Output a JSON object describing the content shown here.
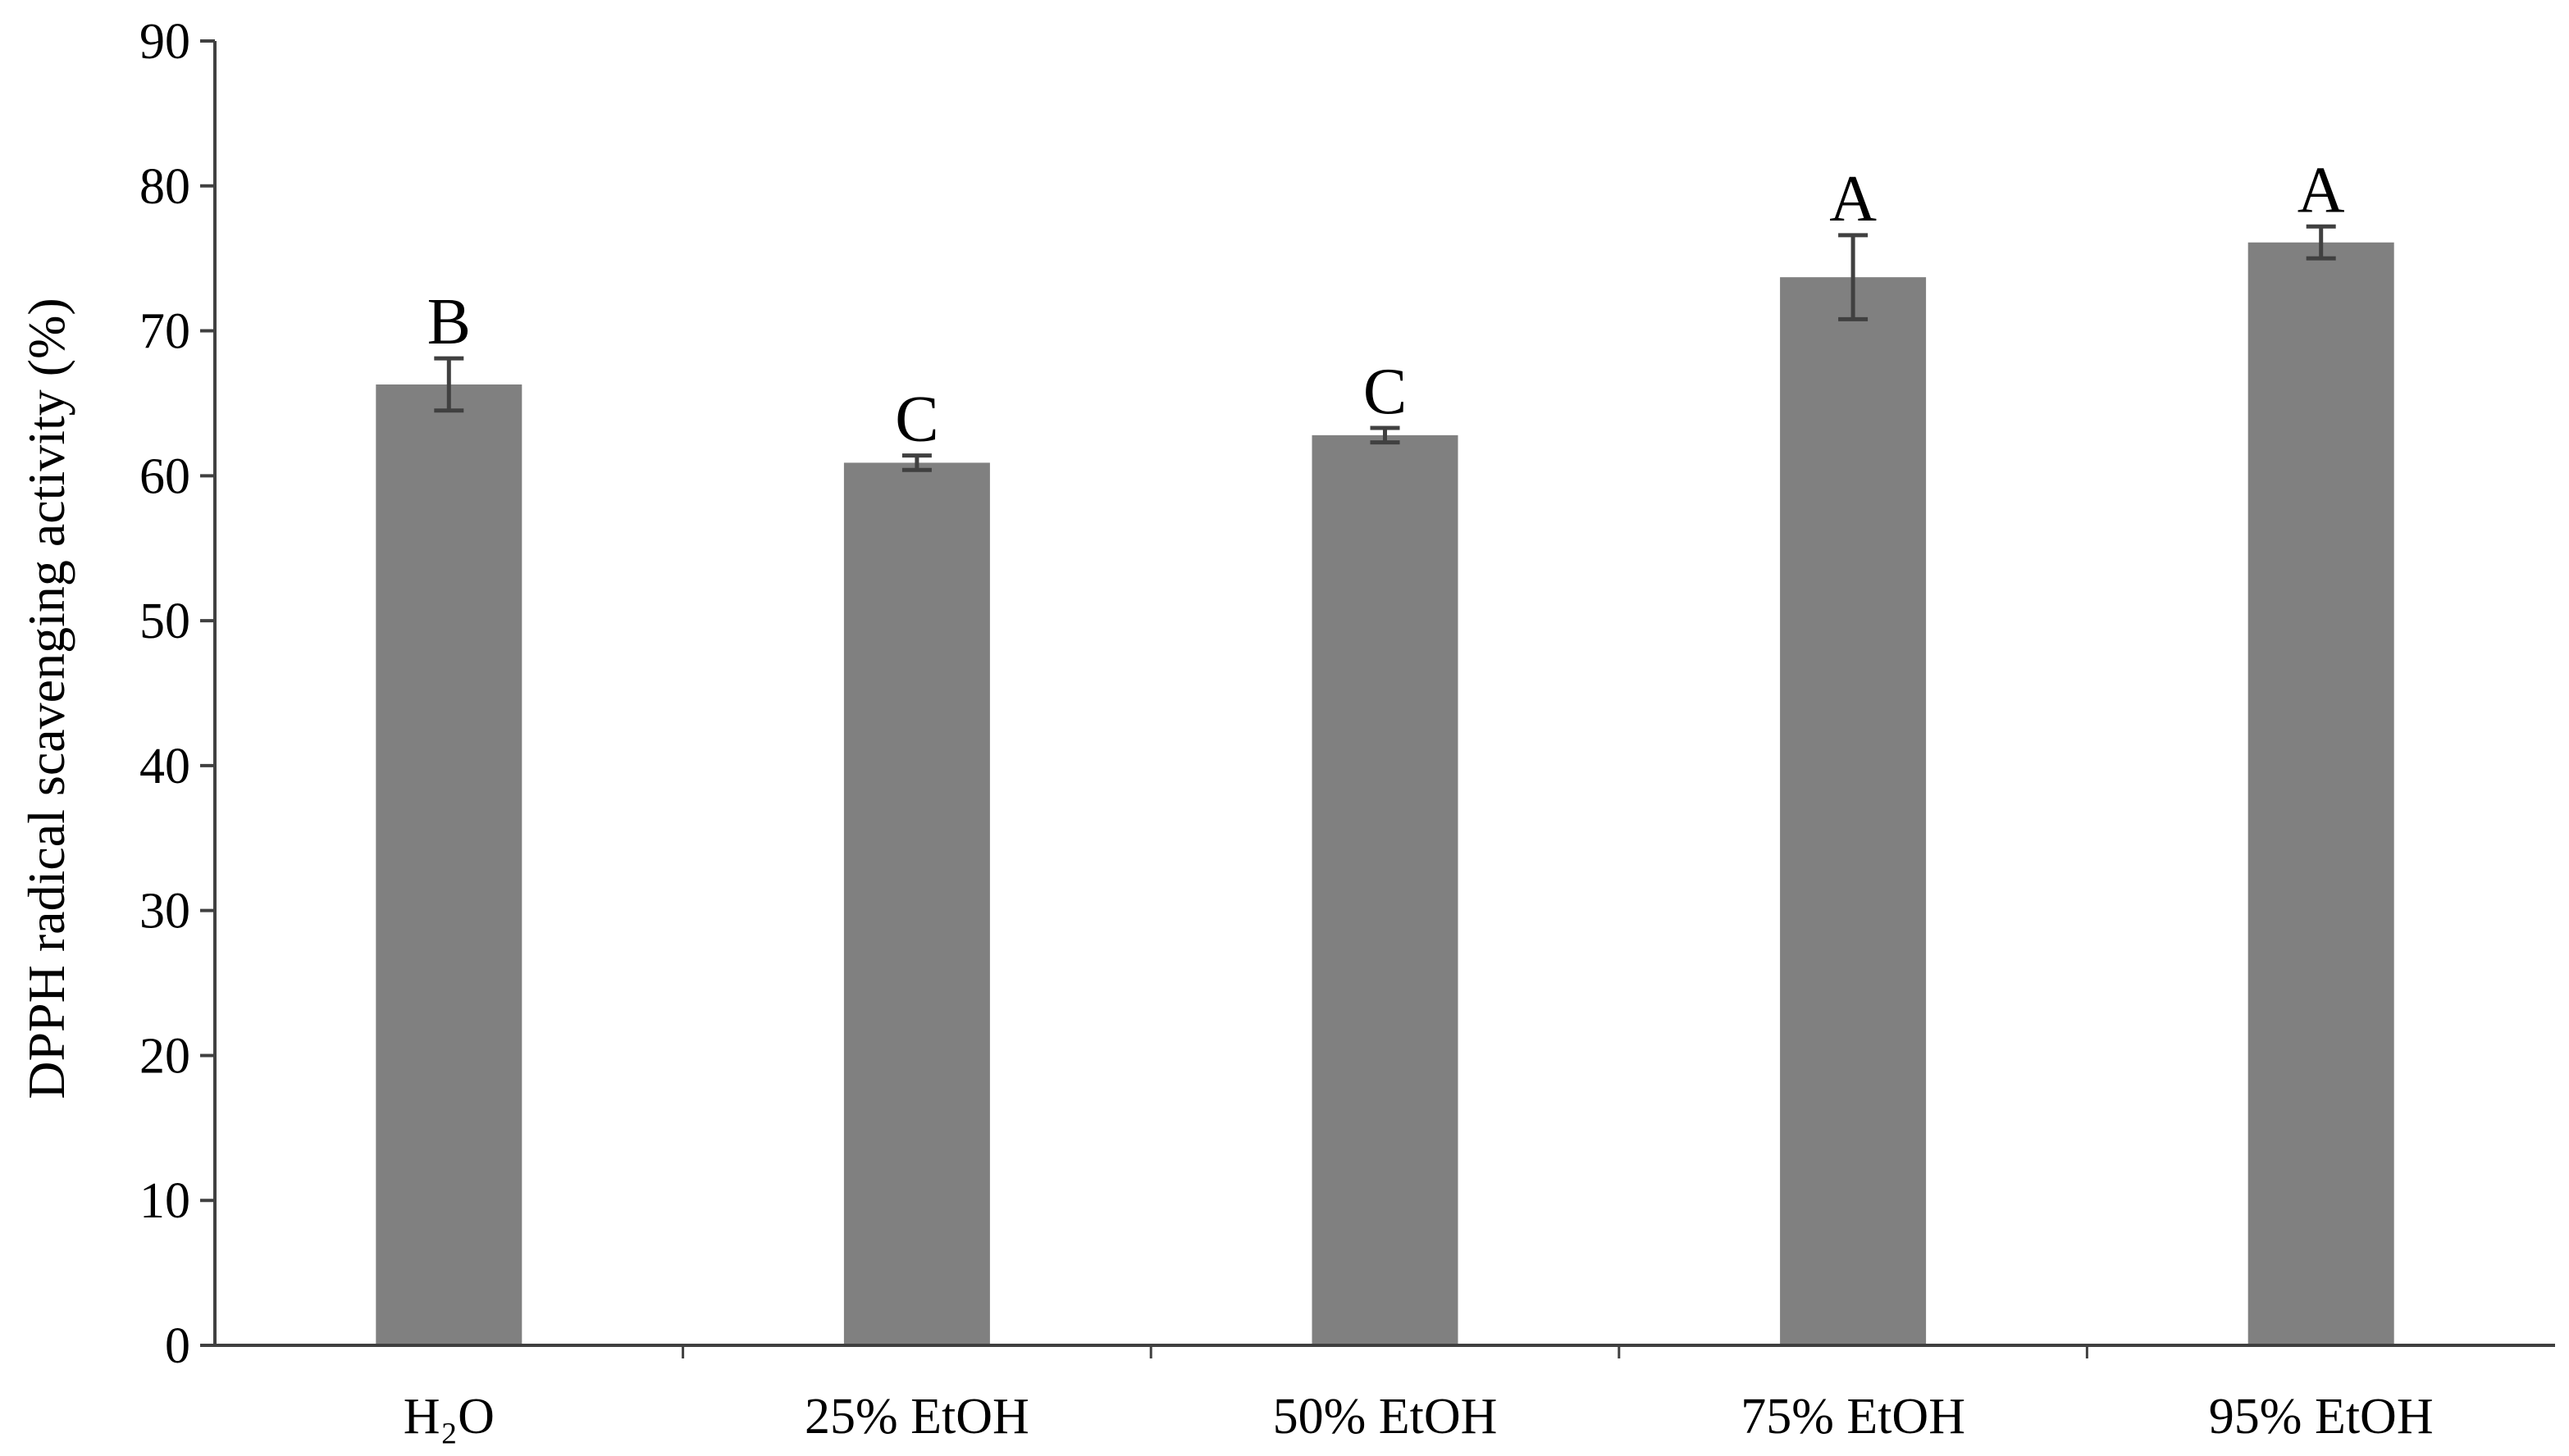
{
  "chart_data": {
    "type": "bar",
    "title": "",
    "xlabel": "",
    "ylabel": "DPPH radical scavenging activity (%)",
    "ylim": [
      0,
      90
    ],
    "yticks": [
      0,
      10,
      20,
      30,
      40,
      50,
      60,
      70,
      80,
      90
    ],
    "grid": false,
    "legend": "none",
    "categories": [
      "H₂O",
      "25% EtOH",
      "50% EtOH",
      "75% EtOH",
      "95% EtOH"
    ],
    "values": [
      66.3,
      60.9,
      62.8,
      73.7,
      76.1
    ],
    "error": [
      1.8,
      0.5,
      0.5,
      2.9,
      1.1
    ],
    "significance": [
      "B",
      "C",
      "C",
      "A",
      "A"
    ],
    "colors": {
      "bar": "#808080",
      "error_bar": "#404040",
      "axis": "#404040"
    }
  }
}
